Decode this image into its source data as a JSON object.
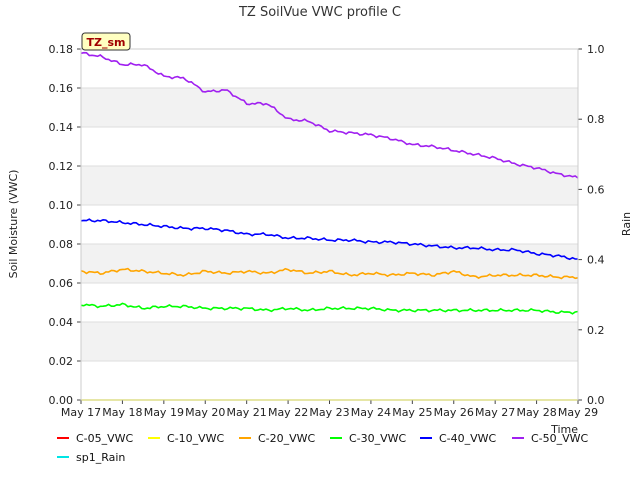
{
  "chart_data": {
    "type": "line",
    "title": "TZ SoilVue VWC profile C",
    "ylabel": "Soil Moisture (VWC)",
    "y2label": "Rain",
    "xlabel": "Time",
    "badge": "TZ_sm",
    "ylim": [
      0,
      0.18
    ],
    "y2lim": [
      0,
      1.0
    ],
    "x_range": [
      "May 17",
      "May 29"
    ],
    "x_ticks": [
      "May 17",
      "May 18",
      "May 19",
      "May 20",
      "May 21",
      "May 22",
      "May 23",
      "May 24",
      "May 25",
      "May 26",
      "May 27",
      "May 28",
      "May 29"
    ],
    "y_ticks": [
      "0.00",
      "0.02",
      "0.04",
      "0.06",
      "0.08",
      "0.10",
      "0.12",
      "0.14",
      "0.16",
      "0.18"
    ],
    "y2_ticks": [
      "0.0",
      "0.2",
      "0.4",
      "0.6",
      "0.8",
      "1.0"
    ],
    "grid": "banded horizontal",
    "x_days": [
      0,
      0.5,
      1,
      1.5,
      2,
      2.5,
      3,
      3.5,
      4,
      4.5,
      5,
      5.5,
      6,
      6.5,
      7,
      7.5,
      8,
      8.5,
      9,
      9.5,
      10,
      10.5,
      11,
      11.5,
      12
    ],
    "series": [
      {
        "name": "C-05_VWC",
        "color": "#ff0000",
        "values": []
      },
      {
        "name": "C-10_VWC",
        "color": "#ffff00",
        "values": [
          0,
          0,
          0,
          0,
          0,
          0,
          0,
          0,
          0,
          0,
          0,
          0,
          0,
          0,
          0,
          0,
          0,
          0,
          0,
          0,
          0,
          0,
          0,
          0,
          0
        ]
      },
      {
        "name": "C-20_VWC",
        "color": "#ffa500",
        "values": [
          0.066,
          0.065,
          0.067,
          0.066,
          0.065,
          0.064,
          0.066,
          0.065,
          0.066,
          0.065,
          0.067,
          0.065,
          0.066,
          0.064,
          0.065,
          0.064,
          0.065,
          0.064,
          0.066,
          0.063,
          0.064,
          0.064,
          0.064,
          0.063,
          0.063
        ]
      },
      {
        "name": "C-30_VWC",
        "color": "#00ff00",
        "values": [
          0.049,
          0.048,
          0.049,
          0.047,
          0.048,
          0.048,
          0.047,
          0.047,
          0.047,
          0.046,
          0.047,
          0.046,
          0.047,
          0.047,
          0.047,
          0.046,
          0.046,
          0.046,
          0.046,
          0.046,
          0.046,
          0.046,
          0.046,
          0.045,
          0.045
        ]
      },
      {
        "name": "C-40_VWC",
        "color": "#0000ff",
        "values": [
          0.092,
          0.092,
          0.091,
          0.09,
          0.089,
          0.088,
          0.088,
          0.087,
          0.085,
          0.085,
          0.083,
          0.083,
          0.082,
          0.082,
          0.081,
          0.081,
          0.08,
          0.079,
          0.078,
          0.078,
          0.077,
          0.077,
          0.075,
          0.074,
          0.072
        ]
      },
      {
        "name": "C-50_VWC",
        "color": "#a020f0",
        "values": [
          0.178,
          0.176,
          0.172,
          0.172,
          0.166,
          0.165,
          0.158,
          0.159,
          0.152,
          0.152,
          0.144,
          0.143,
          0.138,
          0.137,
          0.136,
          0.134,
          0.131,
          0.13,
          0.128,
          0.126,
          0.124,
          0.121,
          0.119,
          0.116,
          0.114
        ]
      },
      {
        "name": "sp1_Rain",
        "color": "#00e5e5",
        "values": []
      }
    ]
  }
}
